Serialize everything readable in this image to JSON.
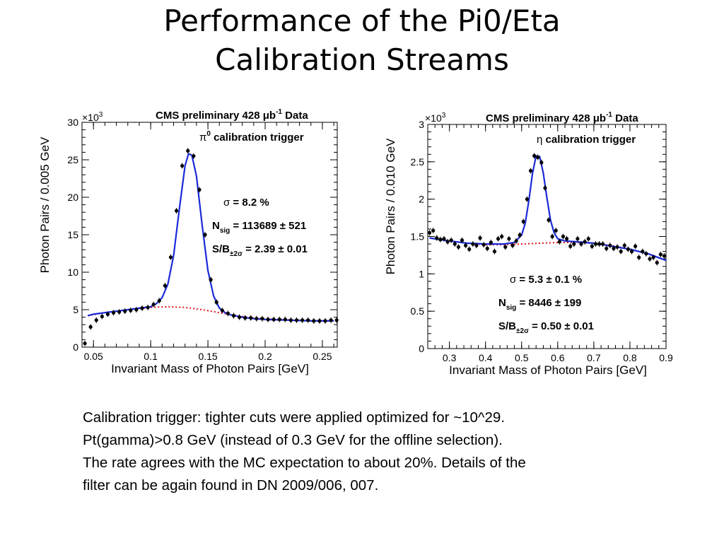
{
  "slide": {
    "title_lines": [
      "Performance of the Pi0/Eta",
      "Calibration Streams"
    ],
    "body_lines": [
      "Calibration trigger: tighter cuts were applied optimized for ~10^29.",
      "Pt(gamma)>0.8 GeV (instead of 0.3 GeV for the offline selection).",
      "The rate agrees with the MC expectation to about 20%. Details of the",
      "filter can be again found in DN 2009/006, 007."
    ]
  },
  "colors": {
    "fit": "#1a2ad8",
    "background_fit": "#e0141c",
    "points": "#000000",
    "axis": "#000000"
  },
  "chart_data": [
    {
      "type": "scatter",
      "header": "CMS preliminary 428 μb",
      "header_sup": "-1",
      "header_tail": " Data",
      "trigger_label": " calibration trigger",
      "trigger_symbol": "π",
      "trigger_sup": "0",
      "multiplier": "×10",
      "multiplier_sup": "3",
      "xlabel": "Invariant Mass of Photon Pairs [GeV]",
      "ylabel": "Photon Pairs / 0.005 GeV",
      "xlim": [
        0.04,
        0.263
      ],
      "ylim": [
        0,
        30
      ],
      "xticks": [
        0.05,
        0.1,
        0.15,
        0.2,
        0.25
      ],
      "xtick_labels": [
        "0.05",
        "0.1",
        "0.15",
        "0.2",
        "0.25"
      ],
      "yticks": [
        0,
        5,
        10,
        15,
        20,
        25,
        30
      ],
      "ytick_labels": [
        "0",
        "5",
        "10",
        "15",
        "20",
        "25",
        "30"
      ],
      "annotations": {
        "sigma": {
          "prefix": "σ",
          "text": " = 8.2 %"
        },
        "nsig": {
          "main": "N",
          "sub": "sig",
          "value": " = 113689 ± 521"
        },
        "sb": {
          "main": "S/B",
          "sub": "±2σ",
          "value": " = 2.39 ± 0.01"
        }
      },
      "series": [
        {
          "role": "data",
          "x": [
            0.0425,
            0.0475,
            0.0525,
            0.0575,
            0.0625,
            0.0675,
            0.0725,
            0.0775,
            0.0825,
            0.0875,
            0.0925,
            0.0975,
            0.1025,
            0.1075,
            0.1125,
            0.1175,
            0.1225,
            0.1275,
            0.1325,
            0.1375,
            0.1425,
            0.1475,
            0.1525,
            0.1575,
            0.1625,
            0.1675,
            0.1725,
            0.1775,
            0.1825,
            0.1875,
            0.1925,
            0.1975,
            0.2025,
            0.2075,
            0.2125,
            0.2175,
            0.2225,
            0.2275,
            0.2325,
            0.2375,
            0.2425,
            0.2475,
            0.2525,
            0.2575,
            0.2625
          ],
          "y": [
            0.5,
            2.7,
            3.6,
            4.1,
            4.4,
            4.6,
            4.7,
            4.8,
            4.9,
            5.0,
            5.2,
            5.3,
            5.7,
            6.2,
            8.2,
            12.0,
            18.2,
            24.2,
            26.2,
            25.5,
            21.0,
            15.0,
            9.0,
            6.0,
            4.9,
            4.5,
            4.2,
            4.0,
            3.9,
            3.9,
            3.8,
            3.8,
            3.7,
            3.7,
            3.7,
            3.7,
            3.6,
            3.6,
            3.6,
            3.6,
            3.5,
            3.5,
            3.5,
            3.6,
            3.6
          ]
        },
        {
          "role": "total-fit",
          "x": [
            0.045,
            0.05,
            0.06,
            0.07,
            0.08,
            0.09,
            0.1,
            0.105,
            0.11,
            0.115,
            0.12,
            0.125,
            0.13,
            0.133,
            0.136,
            0.14,
            0.145,
            0.15,
            0.155,
            0.16,
            0.165,
            0.17,
            0.18,
            0.19,
            0.2,
            0.22,
            0.24,
            0.26
          ],
          "y": [
            4.2,
            4.4,
            4.6,
            4.8,
            5.0,
            5.2,
            5.4,
            5.8,
            6.6,
            8.4,
            12.2,
            18.4,
            24.2,
            25.8,
            25.6,
            22.8,
            16.2,
            10.2,
            6.8,
            5.2,
            4.6,
            4.3,
            4.0,
            3.8,
            3.7,
            3.6,
            3.5,
            3.5
          ]
        },
        {
          "role": "background-fit",
          "x": [
            0.045,
            0.06,
            0.08,
            0.1,
            0.115,
            0.13,
            0.145,
            0.16,
            0.175,
            0.19,
            0.21,
            0.23,
            0.25,
            0.26
          ],
          "y": [
            4.2,
            4.6,
            5.0,
            5.3,
            5.4,
            5.3,
            5.0,
            4.6,
            4.2,
            3.9,
            3.7,
            3.6,
            3.5,
            3.5
          ]
        }
      ]
    },
    {
      "type": "scatter",
      "header": "CMS preliminary 428 μb",
      "header_sup": "-1",
      "header_tail": " Data",
      "trigger_label": " calibration trigger",
      "trigger_symbol": "η",
      "trigger_sup": "",
      "multiplier": "×10",
      "multiplier_sup": "3",
      "xlabel": "Invariant Mass of Photon Pairs [GeV]",
      "ylabel": "Photon Pairs / 0.010 GeV",
      "xlim": [
        0.24,
        0.9
      ],
      "ylim": [
        0,
        3
      ],
      "xticks": [
        0.3,
        0.4,
        0.5,
        0.6,
        0.7,
        0.8,
        0.9
      ],
      "xtick_labels": [
        "0.3",
        "0.4",
        "0.5",
        "0.6",
        "0.7",
        "0.8",
        "0.9"
      ],
      "yticks": [
        0,
        0.5,
        1,
        1.5,
        2,
        2.5,
        3
      ],
      "ytick_labels": [
        "0",
        "0.5",
        "1",
        "1.5",
        "2",
        "2.5",
        "3"
      ],
      "annotations": {
        "sigma": {
          "prefix": "σ",
          "text": " = 5.3 ± 0.1 %"
        },
        "nsig": {
          "main": "N",
          "sub": "sig",
          "value": " = 8446 ± 199"
        },
        "sb": {
          "main": "S/B",
          "sub": "±2σ",
          "value": " = 0.50 ± 0.01"
        }
      },
      "series": [
        {
          "role": "data",
          "x": [
            0.245,
            0.255,
            0.265,
            0.275,
            0.285,
            0.295,
            0.305,
            0.315,
            0.325,
            0.335,
            0.345,
            0.355,
            0.365,
            0.375,
            0.385,
            0.395,
            0.405,
            0.415,
            0.425,
            0.435,
            0.445,
            0.455,
            0.465,
            0.475,
            0.485,
            0.495,
            0.505,
            0.515,
            0.525,
            0.535,
            0.545,
            0.555,
            0.565,
            0.575,
            0.585,
            0.595,
            0.605,
            0.615,
            0.625,
            0.635,
            0.645,
            0.655,
            0.665,
            0.675,
            0.685,
            0.695,
            0.705,
            0.715,
            0.725,
            0.735,
            0.745,
            0.755,
            0.765,
            0.775,
            0.785,
            0.795,
            0.805,
            0.815,
            0.825,
            0.835,
            0.845,
            0.855,
            0.865,
            0.875,
            0.885,
            0.895
          ],
          "y": [
            1.55,
            1.58,
            1.48,
            1.46,
            1.47,
            1.43,
            1.45,
            1.4,
            1.36,
            1.45,
            1.38,
            1.33,
            1.4,
            1.38,
            1.48,
            1.39,
            1.34,
            1.42,
            1.3,
            1.47,
            1.5,
            1.36,
            1.47,
            1.38,
            1.44,
            1.52,
            1.7,
            2.0,
            2.38,
            2.58,
            2.56,
            2.49,
            2.15,
            1.72,
            1.5,
            1.58,
            1.43,
            1.5,
            1.47,
            1.37,
            1.4,
            1.47,
            1.4,
            1.43,
            1.47,
            1.37,
            1.4,
            1.4,
            1.4,
            1.34,
            1.38,
            1.34,
            1.36,
            1.3,
            1.38,
            1.33,
            1.3,
            1.37,
            1.22,
            1.3,
            1.27,
            1.2,
            1.22,
            1.15,
            1.26,
            1.24
          ]
        },
        {
          "role": "total-fit",
          "x": [
            0.245,
            0.3,
            0.35,
            0.4,
            0.45,
            0.48,
            0.5,
            0.51,
            0.52,
            0.53,
            0.54,
            0.55,
            0.56,
            0.57,
            0.58,
            0.59,
            0.6,
            0.62,
            0.65,
            0.7,
            0.75,
            0.8,
            0.85,
            0.9
          ],
          "y": [
            1.48,
            1.44,
            1.41,
            1.4,
            1.4,
            1.42,
            1.52,
            1.68,
            1.98,
            2.34,
            2.58,
            2.57,
            2.35,
            2.02,
            1.72,
            1.55,
            1.47,
            1.44,
            1.43,
            1.41,
            1.37,
            1.33,
            1.27,
            1.18
          ]
        },
        {
          "role": "background-fit",
          "x": [
            0.245,
            0.3,
            0.35,
            0.4,
            0.45,
            0.5,
            0.55,
            0.6,
            0.65,
            0.7,
            0.75,
            0.8,
            0.85,
            0.9
          ],
          "y": [
            1.48,
            1.44,
            1.41,
            1.39,
            1.39,
            1.4,
            1.41,
            1.42,
            1.42,
            1.41,
            1.38,
            1.33,
            1.27,
            1.18
          ]
        }
      ]
    }
  ]
}
